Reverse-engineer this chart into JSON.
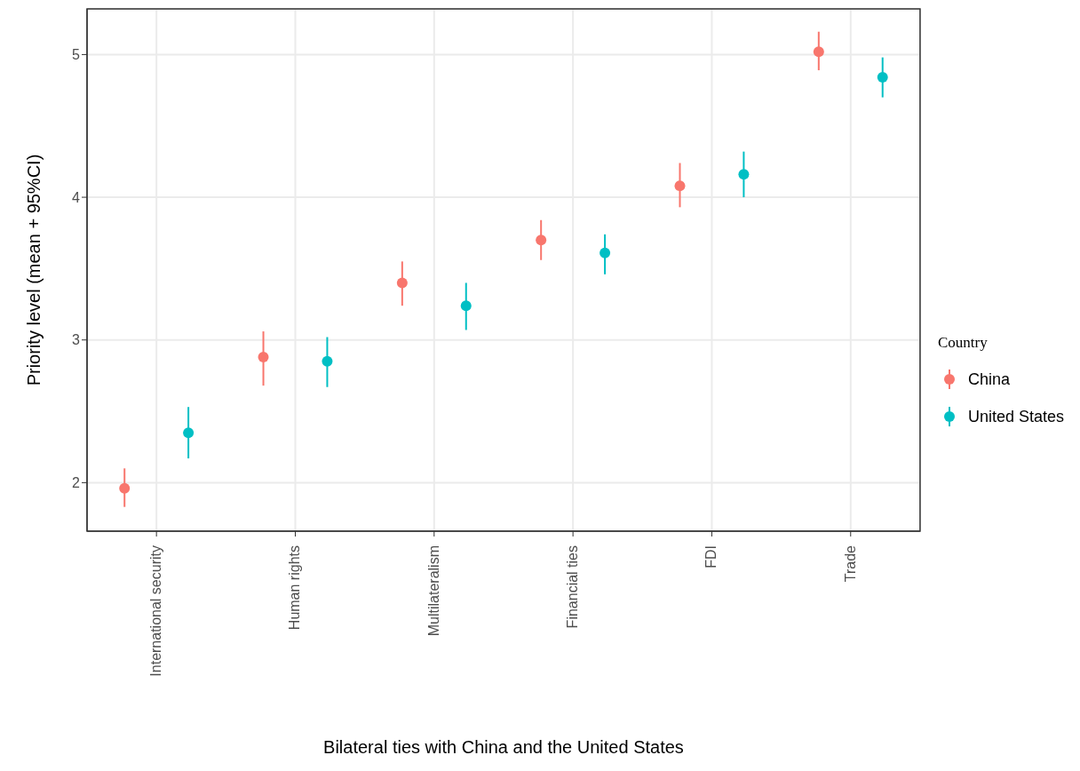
{
  "chart_data": {
    "type": "scatter",
    "xlabel": "Bilateral ties with China and the United States",
    "ylabel": "Priority level (mean + 95%CI)",
    "legend_title": "Country",
    "categories": [
      "International security",
      "Human rights",
      "Multilateralism",
      "Financial ties",
      "FDI",
      "Trade"
    ],
    "series": [
      {
        "name": "China",
        "color": "#f8766d",
        "values": [
          1.96,
          2.88,
          3.4,
          3.7,
          4.08,
          5.02
        ],
        "errors": [
          [
            1.83,
            2.1
          ],
          [
            2.68,
            3.06
          ],
          [
            3.24,
            3.55
          ],
          [
            3.56,
            3.84
          ],
          [
            3.93,
            4.24
          ],
          [
            4.89,
            5.16
          ]
        ]
      },
      {
        "name": "United States",
        "color": "#00bfc4",
        "values": [
          2.35,
          2.85,
          3.24,
          3.61,
          4.16,
          4.84
        ],
        "errors": [
          [
            2.17,
            2.53
          ],
          [
            2.67,
            3.02
          ],
          [
            3.07,
            3.4
          ],
          [
            3.46,
            3.74
          ],
          [
            4.0,
            4.32
          ],
          [
            4.7,
            4.98
          ]
        ]
      }
    ],
    "ylim": [
      1.66,
      5.32
    ],
    "yticks": [
      2,
      3,
      4,
      5
    ],
    "grid": true,
    "legend": "right",
    "marker": "circle"
  }
}
